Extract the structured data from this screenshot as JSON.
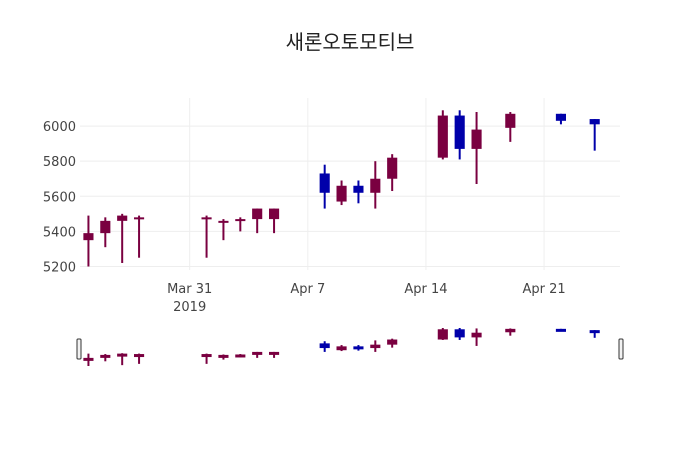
{
  "chart_data": {
    "type": "candlestick",
    "title": "새론오토모티브",
    "xlabel": "",
    "ylabel": "",
    "ylim": [
      5180,
      6160
    ],
    "grid": true,
    "increasing_color": "#0000aa",
    "decreasing_color": "#7a0040",
    "x_ticks": [
      {
        "date": "2019-03-31",
        "label": "Mar 31",
        "sublabel": "2019"
      },
      {
        "date": "2019-04-07",
        "label": "Apr 7"
      },
      {
        "date": "2019-04-14",
        "label": "Apr 14"
      },
      {
        "date": "2019-04-21",
        "label": "Apr 21"
      }
    ],
    "y_ticks": [
      5200,
      5400,
      5600,
      5800,
      6000
    ],
    "candles": [
      {
        "date": "2019-03-25",
        "open": 5390,
        "high": 5490,
        "low": 5200,
        "close": 5350
      },
      {
        "date": "2019-03-26",
        "open": 5460,
        "high": 5480,
        "low": 5310,
        "close": 5390
      },
      {
        "date": "2019-03-27",
        "open": 5490,
        "high": 5500,
        "low": 5220,
        "close": 5460
      },
      {
        "date": "2019-03-28",
        "open": 5480,
        "high": 5490,
        "low": 5250,
        "close": 5470
      },
      {
        "date": "2019-04-01",
        "open": 5480,
        "high": 5490,
        "low": 5250,
        "close": 5470
      },
      {
        "date": "2019-04-02",
        "open": 5460,
        "high": 5470,
        "low": 5350,
        "close": 5450
      },
      {
        "date": "2019-04-03",
        "open": 5470,
        "high": 5480,
        "low": 5400,
        "close": 5460
      },
      {
        "date": "2019-04-04",
        "open": 5530,
        "high": 5530,
        "low": 5390,
        "close": 5470
      },
      {
        "date": "2019-04-05",
        "open": 5530,
        "high": 5530,
        "low": 5390,
        "close": 5470
      },
      {
        "date": "2019-04-08",
        "open": 5620,
        "high": 5780,
        "low": 5530,
        "close": 5730
      },
      {
        "date": "2019-04-09",
        "open": 5660,
        "high": 5690,
        "low": 5550,
        "close": 5570
      },
      {
        "date": "2019-04-10",
        "open": 5620,
        "high": 5690,
        "low": 5560,
        "close": 5660
      },
      {
        "date": "2019-04-11",
        "open": 5700,
        "high": 5800,
        "low": 5530,
        "close": 5620
      },
      {
        "date": "2019-04-12",
        "open": 5820,
        "high": 5840,
        "low": 5630,
        "close": 5700
      },
      {
        "date": "2019-04-15",
        "open": 6060,
        "high": 6090,
        "low": 5810,
        "close": 5820
      },
      {
        "date": "2019-04-16",
        "open": 5870,
        "high": 6090,
        "low": 5810,
        "close": 6060
      },
      {
        "date": "2019-04-17",
        "open": 5980,
        "high": 6080,
        "low": 5670,
        "close": 5870
      },
      {
        "date": "2019-04-19",
        "open": 6070,
        "high": 6080,
        "low": 5910,
        "close": 5990
      },
      {
        "date": "2019-04-22",
        "open": 6030,
        "high": 6070,
        "low": 6010,
        "close": 6070
      },
      {
        "date": "2019-04-24",
        "open": 6010,
        "high": 6040,
        "low": 5860,
        "close": 6040
      }
    ]
  }
}
